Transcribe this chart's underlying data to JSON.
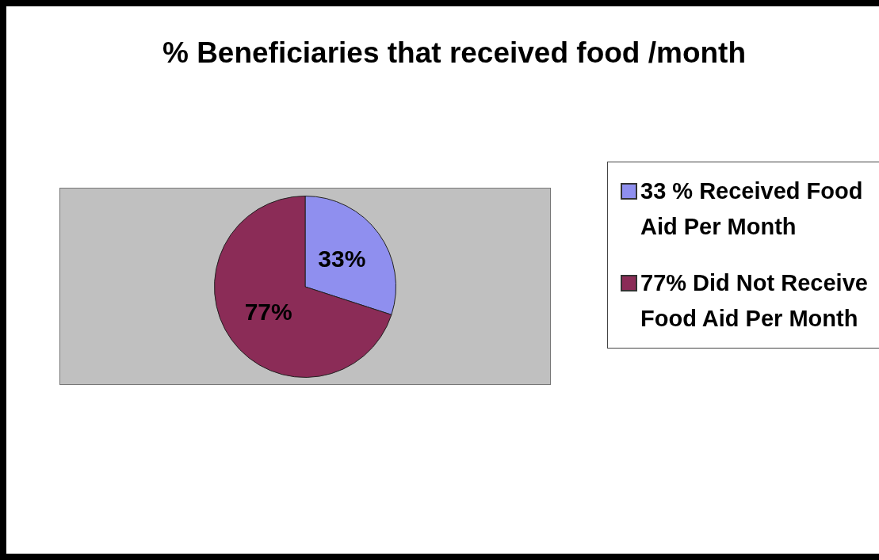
{
  "chart_data": {
    "type": "pie",
    "title": "% Beneficiaries that received food /month",
    "categories": [
      "33 % Received Food Aid Per Month",
      "77% Did Not Receive Food Aid Per Month"
    ],
    "values": [
      33,
      77
    ],
    "colors": [
      "#8f8fef",
      "#8b2c57"
    ],
    "value_labels": [
      "33%",
      "77%"
    ],
    "legend": "right"
  }
}
